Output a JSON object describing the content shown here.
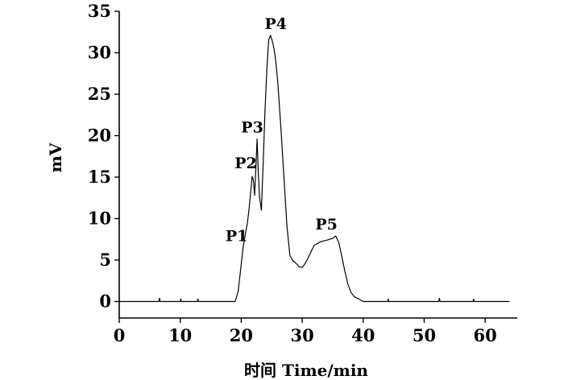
{
  "chart_data": {
    "type": "line",
    "xlabel": "时间 Time/min",
    "ylabel": "mV",
    "xlim": [
      0,
      65
    ],
    "ylim": [
      -2,
      35
    ],
    "xticks": [
      0,
      10,
      20,
      30,
      40,
      50,
      60
    ],
    "yticks": [
      0,
      5,
      10,
      15,
      20,
      25,
      30,
      35
    ],
    "grid": false,
    "series": [
      {
        "x": [
          0,
          6.5,
          6.6,
          6.7,
          10,
          10.1,
          10.2,
          12.8,
          12.9,
          13,
          19,
          19.5,
          20,
          20.3,
          20.5,
          20.8,
          21,
          21.3,
          21.6,
          21.8,
          22,
          22.2,
          22.4,
          22.6,
          22.8,
          23,
          23.3,
          23.6,
          23.9,
          24.2,
          24.5,
          24.8,
          25.1,
          25.4,
          25.7,
          26,
          26.5,
          27,
          27.5,
          28,
          28.5,
          29,
          29.5,
          30,
          30.5,
          31,
          31.5,
          32,
          33,
          34,
          35,
          35.5,
          36,
          36.5,
          37,
          37.5,
          38,
          38.5,
          39,
          39.3,
          40,
          44,
          44.1,
          44.2,
          48,
          52.4,
          52.5,
          52.6,
          55,
          58,
          58.1,
          58.2,
          60,
          64
        ],
        "y": [
          0,
          0,
          0.4,
          0,
          0,
          0.3,
          0,
          0,
          0.3,
          0,
          0,
          1.2,
          4.5,
          6.5,
          7.4,
          8.6,
          9.4,
          11.2,
          13.6,
          15.1,
          14.6,
          12.8,
          16.2,
          19.6,
          15.4,
          12.6,
          11,
          16.5,
          23,
          28,
          31.5,
          32.1,
          31.4,
          30.4,
          28.8,
          26.4,
          21,
          15,
          9,
          5.5,
          4.9,
          4.6,
          4.2,
          4.1,
          4.6,
          5.3,
          6.1,
          6.8,
          7.2,
          7.4,
          7.6,
          7.9,
          7.1,
          5.4,
          3.6,
          2.1,
          1.1,
          0.6,
          0.4,
          0.3,
          0,
          0,
          0.3,
          0,
          0,
          0,
          0.4,
          0,
          0,
          0,
          0.3,
          0,
          0,
          0
        ]
      }
    ],
    "annotations": [
      {
        "text": "P1",
        "x": 20.3,
        "y": 6.5
      },
      {
        "text": "P2",
        "x": 21.8,
        "y": 15.1
      },
      {
        "text": "P3",
        "x": 22.6,
        "y": 19.6
      },
      {
        "text": "P4",
        "x": 25.4,
        "y": 32.1
      },
      {
        "text": "P5",
        "x": 34.5,
        "y": 7.9
      }
    ]
  }
}
